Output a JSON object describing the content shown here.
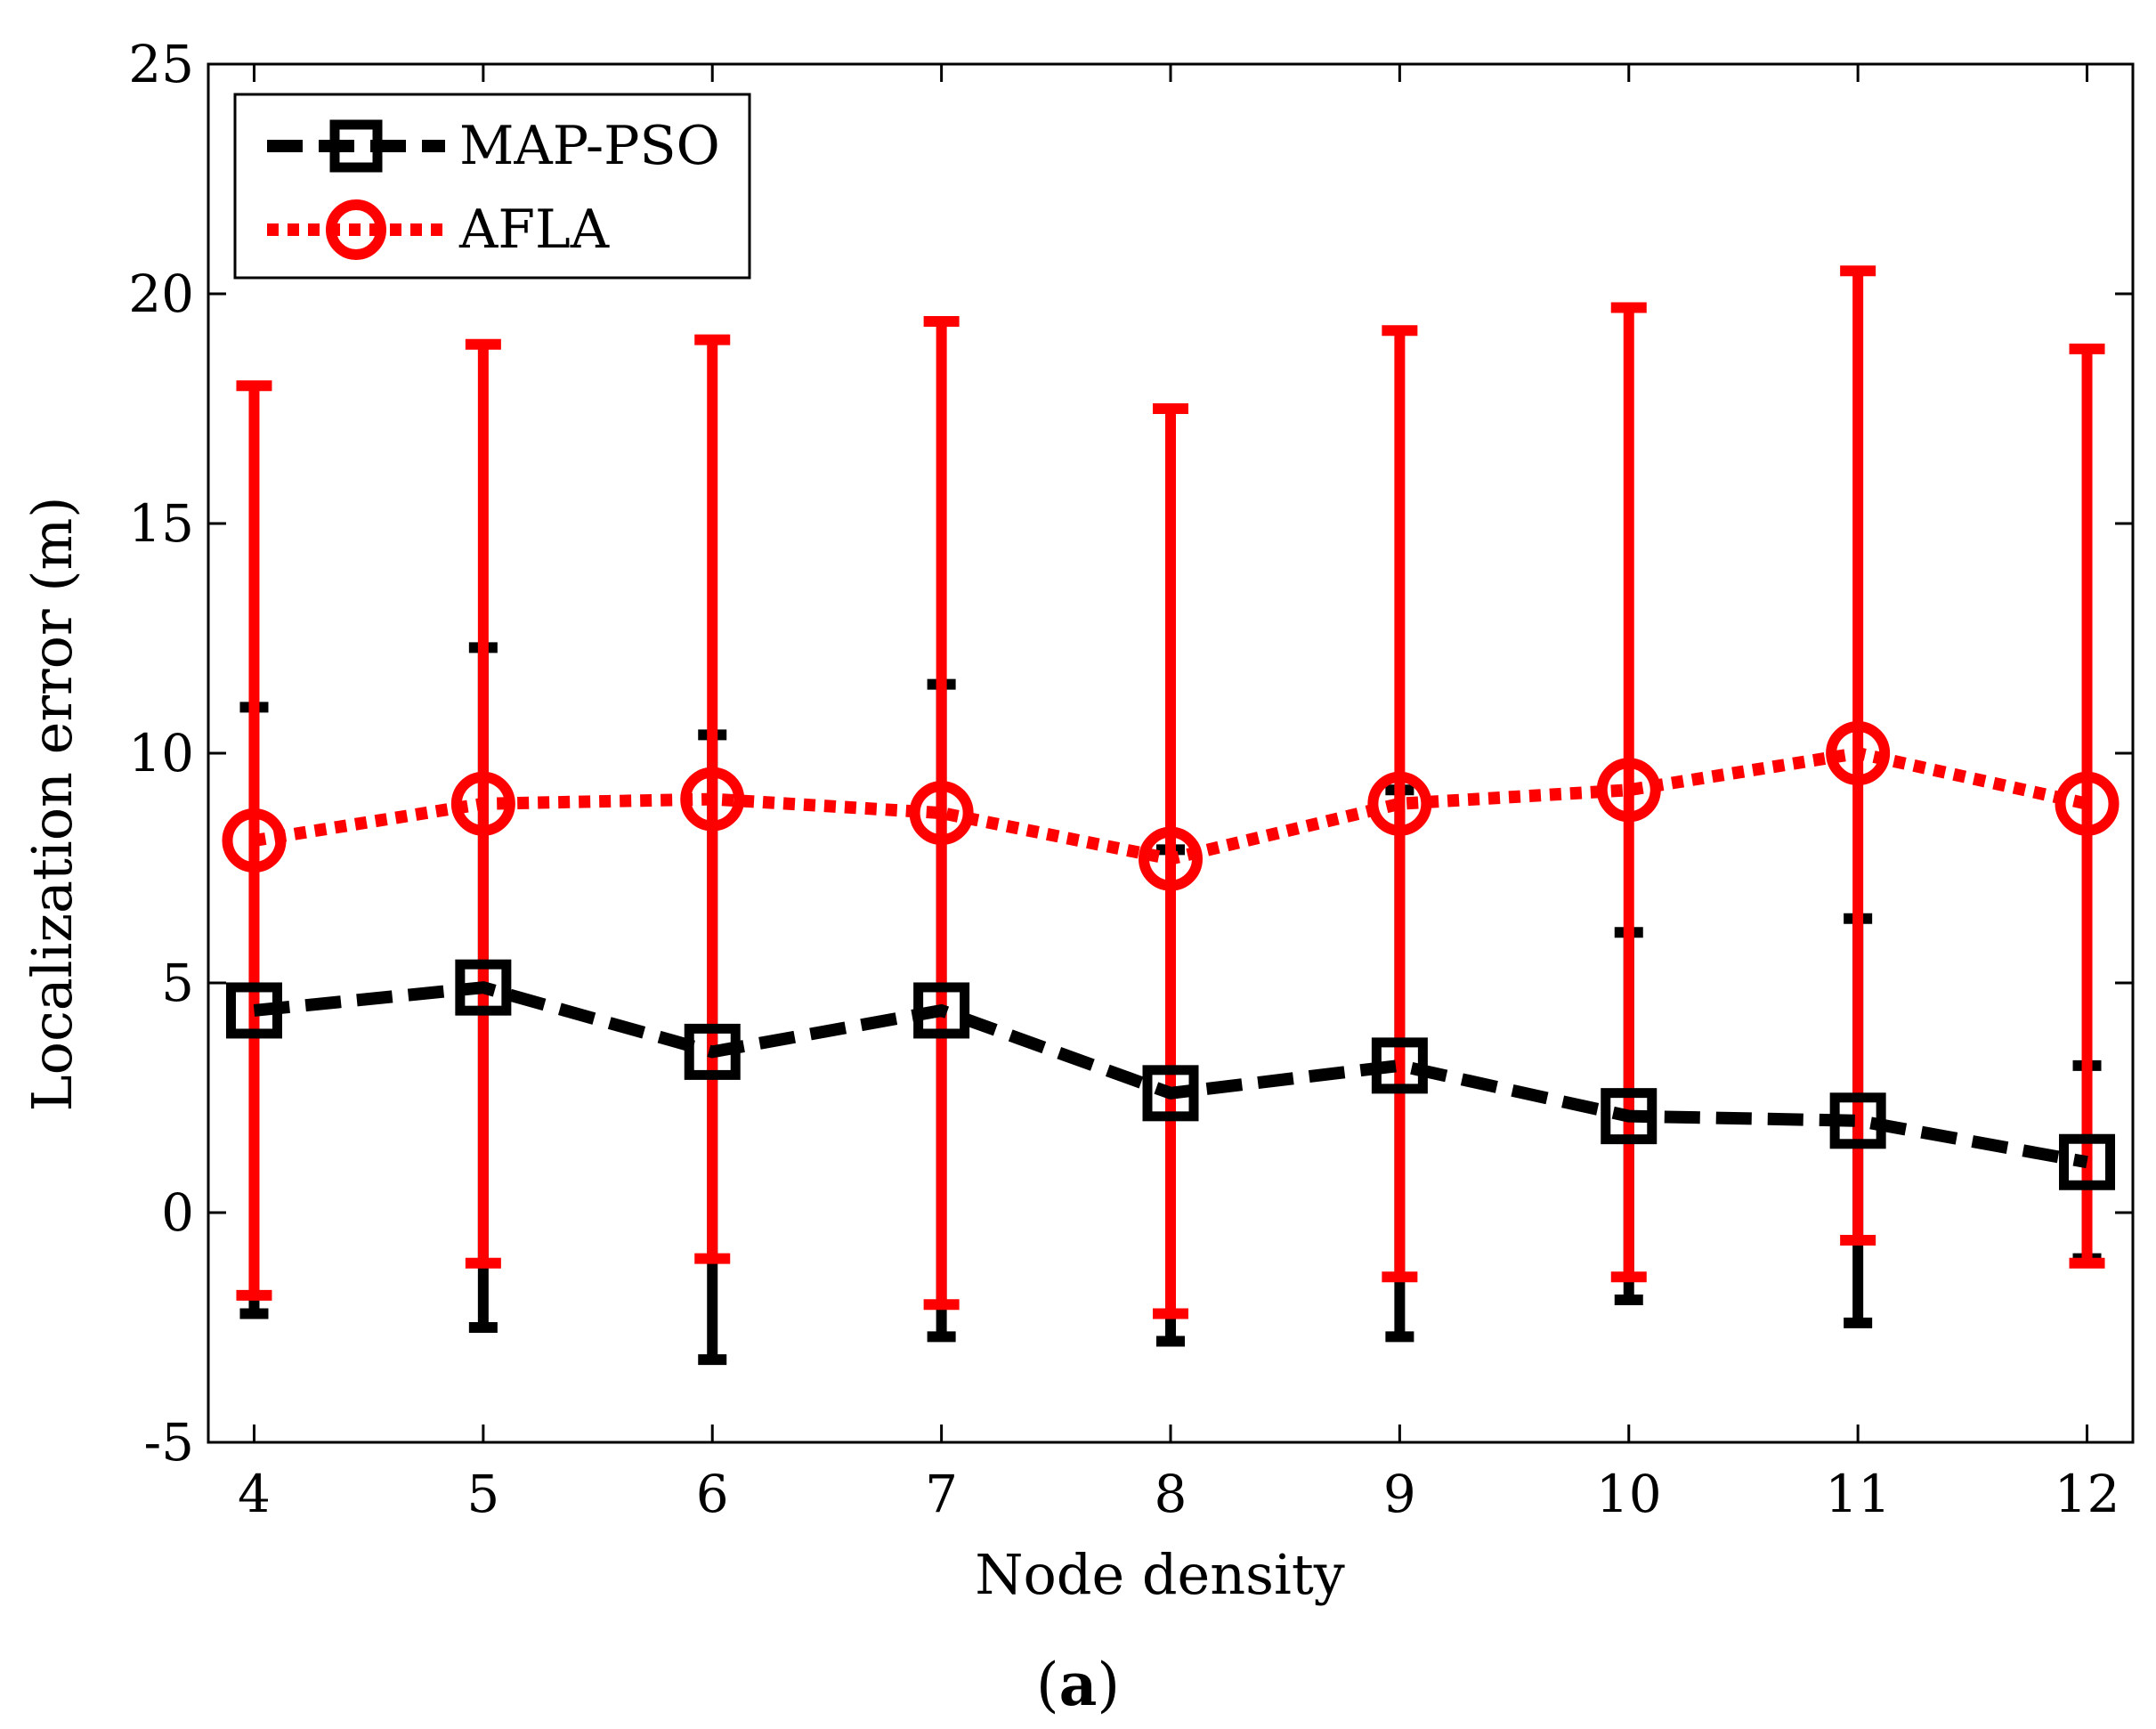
{
  "chart_data": {
    "type": "line",
    "title": "",
    "xlabel": "Node density",
    "ylabel": "Localization error (m)",
    "xlim": [
      3.8,
      12.2
    ],
    "ylim": [
      -5,
      25
    ],
    "x_ticks": [
      "4",
      "5",
      "6",
      "7",
      "8",
      "9",
      "10",
      "11",
      "12"
    ],
    "y_ticks": [
      "-5",
      "0",
      "5",
      "10",
      "15",
      "20",
      "25"
    ],
    "x": [
      4,
      5,
      6,
      7,
      8,
      9,
      10,
      11,
      12
    ],
    "legend_position": "top-left",
    "series": [
      {
        "name": "MAP-PSO",
        "marker": "square",
        "line_style": "dashed",
        "color": "#000000",
        "values": [
          4.4,
          4.9,
          3.5,
          4.4,
          2.6,
          3.2,
          2.1,
          2.0,
          1.1
        ],
        "error_lower": [
          -2.2,
          -2.5,
          -3.2,
          -2.7,
          -2.8,
          -2.7,
          -1.9,
          -2.4,
          -1.0
        ],
        "error_upper": [
          11.0,
          12.3,
          10.4,
          11.5,
          7.9,
          9.2,
          6.1,
          6.4,
          3.2
        ]
      },
      {
        "name": "AFLA",
        "marker": "circle",
        "line_style": "dotted",
        "color": "#ff0000",
        "values": [
          8.1,
          8.9,
          9.0,
          8.7,
          7.7,
          8.9,
          9.2,
          10.0,
          8.9
        ],
        "error_lower": [
          -1.8,
          -1.1,
          -1.0,
          -2.0,
          -2.2,
          -1.4,
          -1.4,
          -0.6,
          -1.1
        ],
        "error_upper": [
          18.0,
          18.9,
          19.0,
          19.4,
          17.5,
          19.2,
          19.7,
          20.5,
          18.8
        ]
      }
    ]
  },
  "caption": {
    "open": "(",
    "letter": "a",
    "close": ")"
  }
}
